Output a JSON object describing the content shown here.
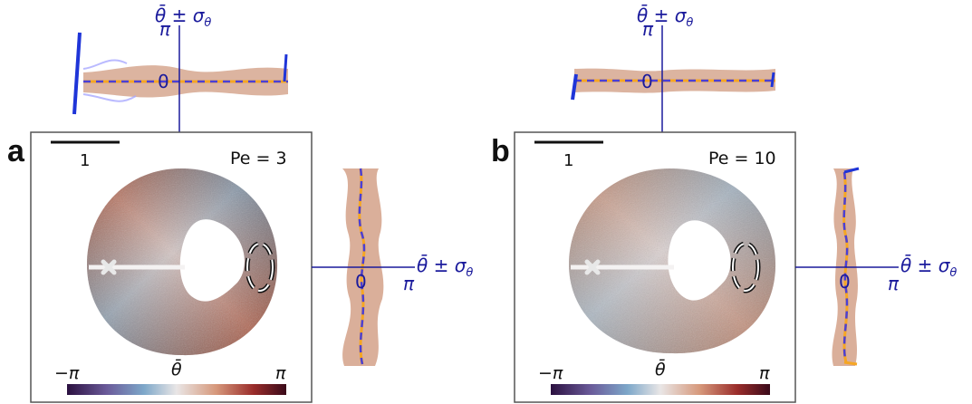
{
  "colors": {
    "axis": "#1a1a9c",
    "mean_line": "#4a3fd6",
    "orange": "#f5a623",
    "band": "#cd9478",
    "band_light": "#a9a9ff",
    "frame": "#555555",
    "warm": "#a5452b",
    "cool": "#4e84ad",
    "colorbar_stops": [
      "#2b1040",
      "#6a5a99",
      "#7da7c9",
      "#e9e6e6",
      "#d6987b",
      "#9a2d2b",
      "#3a0a1a"
    ]
  },
  "panels": [
    {
      "label": "a",
      "pe_text": "Pe = 3",
      "scalebar_label": "1",
      "colorbar": {
        "min_label": "−π",
        "mid_label": "θ̄",
        "max_label": "π"
      },
      "top_inset": {
        "axis_label": "θ̄ ± σ",
        "axis_label_sub": "θ",
        "pi_label": "π",
        "zero_label": "0"
      },
      "right_inset": {
        "axis_label": "θ̄ ± σ",
        "axis_label_sub": "θ",
        "pi_label": "π",
        "zero_label": "0"
      },
      "markers": [
        "cross-marker",
        "dashed-ellipse"
      ]
    },
    {
      "label": "b",
      "pe_text": "Pe = 10",
      "scalebar_label": "1",
      "colorbar": {
        "min_label": "−π",
        "mid_label": "θ̄",
        "max_label": "π"
      },
      "top_inset": {
        "axis_label": "θ̄ ± σ",
        "axis_label_sub": "θ",
        "pi_label": "π",
        "zero_label": "0"
      },
      "right_inset": {
        "axis_label": "θ̄ ± σ",
        "axis_label_sub": "θ",
        "pi_label": "π",
        "zero_label": "0"
      },
      "markers": [
        "cross-marker",
        "dashed-ellipse"
      ]
    }
  ]
}
